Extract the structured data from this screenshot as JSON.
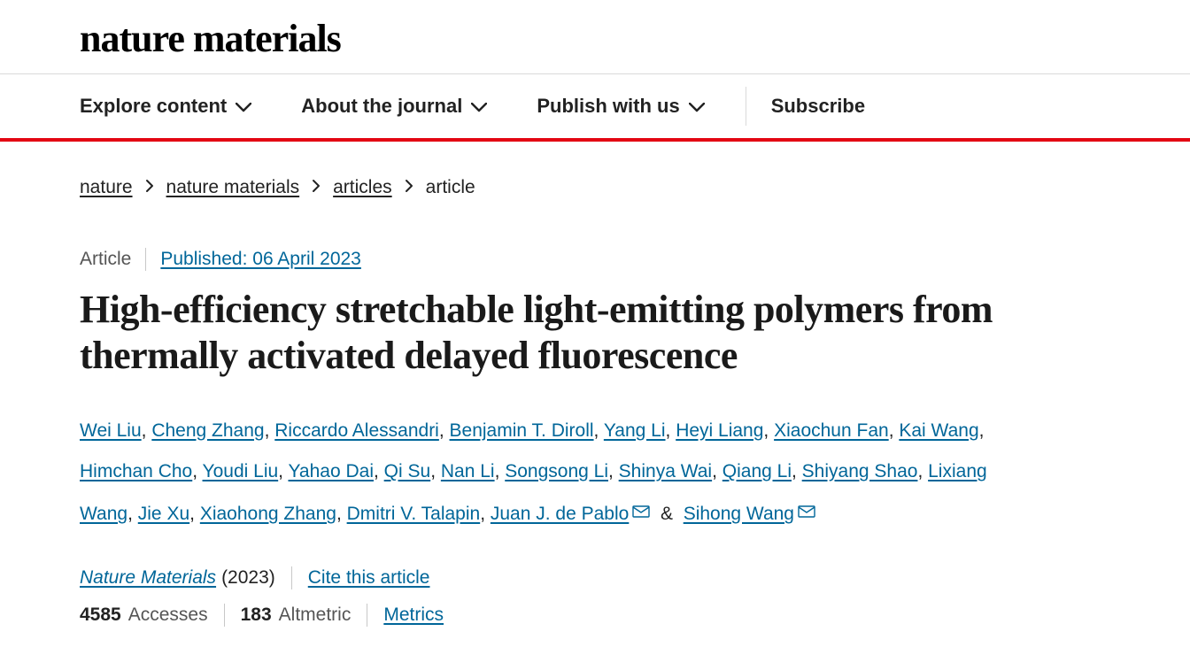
{
  "brand": "nature materials",
  "nav": {
    "items": [
      {
        "label": "Explore content",
        "has_chevron": true
      },
      {
        "label": "About the journal",
        "has_chevron": true
      },
      {
        "label": "Publish with us",
        "has_chevron": true
      }
    ],
    "subscribe": "Subscribe"
  },
  "breadcrumb": {
    "items": [
      "nature",
      "nature materials",
      "articles"
    ],
    "current": "article"
  },
  "article": {
    "type_label": "Article",
    "published_label": "Published: 06 April 2023",
    "title": "High-efficiency stretchable light-emitting polymers from thermally activated delayed fluorescence",
    "authors": [
      {
        "name": "Wei Liu",
        "mail": false
      },
      {
        "name": "Cheng Zhang",
        "mail": false
      },
      {
        "name": "Riccardo Alessandri",
        "mail": false
      },
      {
        "name": "Benjamin T. Diroll",
        "mail": false
      },
      {
        "name": "Yang Li",
        "mail": false
      },
      {
        "name": "Heyi Liang",
        "mail": false
      },
      {
        "name": "Xiaochun Fan",
        "mail": false
      },
      {
        "name": "Kai Wang",
        "mail": false
      },
      {
        "name": "Himchan Cho",
        "mail": false
      },
      {
        "name": "Youdi Liu",
        "mail": false
      },
      {
        "name": "Yahao Dai",
        "mail": false
      },
      {
        "name": "Qi Su",
        "mail": false
      },
      {
        "name": "Nan Li",
        "mail": false
      },
      {
        "name": "Songsong Li",
        "mail": false
      },
      {
        "name": "Shinya Wai",
        "mail": false
      },
      {
        "name": "Qiang Li",
        "mail": false
      },
      {
        "name": "Shiyang Shao",
        "mail": false
      },
      {
        "name": "Lixiang Wang",
        "mail": false
      },
      {
        "name": "Jie Xu",
        "mail": false
      },
      {
        "name": "Xiaohong Zhang",
        "mail": false
      },
      {
        "name": "Dmitri V. Talapin",
        "mail": false
      },
      {
        "name": "Juan J. de Pablo",
        "mail": true
      },
      {
        "name": "Sihong Wang",
        "mail": true,
        "ampersand_before": true
      }
    ],
    "journal_name": "Nature Materials",
    "journal_year": "(2023)",
    "cite_label": "Cite this article",
    "metrics": {
      "accesses_count": "4585",
      "accesses_label": "Accesses",
      "altmetric_count": "183",
      "altmetric_label": "Altmetric",
      "metrics_link": "Metrics"
    }
  },
  "colors": {
    "accent_red": "#e30613",
    "link_blue": "#006699",
    "text": "#222222",
    "muted": "#555555",
    "divider": "#c8c8c8",
    "background": "#ffffff"
  }
}
